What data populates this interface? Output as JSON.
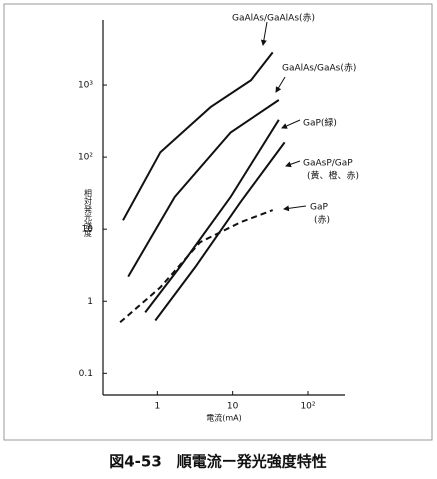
{
  "chart_data": {
    "type": "line",
    "caption": "図4-53　順電流ー発光強度特性",
    "x_label": "電流(mA)",
    "y_label": "相対発光強度",
    "log_x": true,
    "log_y": true,
    "xlim": [
      0.19,
      310
    ],
    "ylim": [
      0.05,
      8000
    ],
    "xticks": [
      1,
      10,
      {
        "value": 100,
        "label": "10²"
      }
    ],
    "yticks": [
      0.1,
      1,
      10,
      {
        "value": 100,
        "label": "10²"
      },
      {
        "value": 1000,
        "label": "10³"
      }
    ],
    "series": [
      {
        "name": "GaAlAs/GaAlAs(赤)",
        "color": "#111111",
        "line_style": "solid",
        "x": [
          0.35,
          1.1,
          5.1,
          17.5,
          34
        ],
        "values": [
          13.3,
          117,
          494,
          1170,
          2840
        ]
      },
      {
        "name": "GaAlAs/GaAs(赤)",
        "color": "#111111",
        "line_style": "solid",
        "x": [
          0.41,
          1.7,
          9.4,
          41
        ],
        "values": [
          2.2,
          28,
          220,
          620
        ]
      },
      {
        "name": "GaP(緑)",
        "color": "#111111",
        "line_style": "solid",
        "x": [
          0.69,
          2.0,
          9.4,
          41
        ],
        "values": [
          0.7,
          3,
          28,
          330
        ]
      },
      {
        "name": "GaAsP/GaP",
        "name_line2": "(黄、橙、赤)",
        "color": "#111111",
        "line_style": "solid",
        "x": [
          0.94,
          3.2,
          12.8,
          49
        ],
        "values": [
          0.54,
          3,
          24,
          160
        ]
      },
      {
        "name": "GaP",
        "name_line2": "(赤)",
        "color": "#111111",
        "line_style": "dashed",
        "x": [
          0.32,
          1.1,
          3.7,
          12.8,
          34
        ],
        "values": [
          0.51,
          1.56,
          6.6,
          12.5,
          18.4
        ]
      }
    ]
  }
}
